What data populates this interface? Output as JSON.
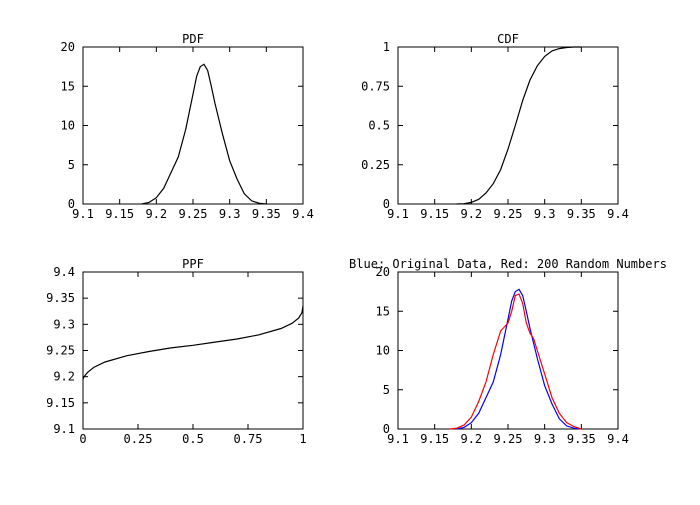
{
  "chart_data": [
    {
      "type": "line",
      "title": "PDF",
      "xlabel": "",
      "ylabel": "",
      "xlim": [
        9.1,
        9.4
      ],
      "ylim": [
        0,
        20
      ],
      "x_ticks": [
        "9.1",
        "9.15",
        "9.2",
        "9.25",
        "9.3",
        "9.35",
        "9.4"
      ],
      "y_ticks": [
        "0",
        "5",
        "10",
        "15",
        "20"
      ],
      "series": [
        {
          "color": "#000000",
          "x": [
            9.18,
            9.19,
            9.2,
            9.21,
            9.22,
            9.23,
            9.24,
            9.25,
            9.255,
            9.26,
            9.265,
            9.27,
            9.275,
            9.28,
            9.29,
            9.3,
            9.31,
            9.32,
            9.33,
            9.34,
            9.35
          ],
          "y": [
            0,
            0.2,
            0.8,
            2,
            4,
            6,
            9.5,
            14,
            16.3,
            17.5,
            17.8,
            17,
            15,
            12.8,
            9,
            5.5,
            3.2,
            1.3,
            0.4,
            0.1,
            0
          ]
        }
      ]
    },
    {
      "type": "line",
      "title": "CDF",
      "xlabel": "",
      "ylabel": "",
      "xlim": [
        9.1,
        9.4
      ],
      "ylim": [
        0,
        1
      ],
      "x_ticks": [
        "9.1",
        "9.15",
        "9.2",
        "9.25",
        "9.3",
        "9.35",
        "9.4"
      ],
      "y_ticks": [
        "0",
        "0.25",
        "0.5",
        "0.75",
        "1"
      ],
      "series": [
        {
          "color": "#000000",
          "x": [
            9.18,
            9.19,
            9.2,
            9.21,
            9.22,
            9.23,
            9.24,
            9.25,
            9.26,
            9.27,
            9.28,
            9.29,
            9.3,
            9.31,
            9.32,
            9.33,
            9.34,
            9.35
          ],
          "y": [
            0,
            0.002,
            0.01,
            0.03,
            0.07,
            0.13,
            0.22,
            0.35,
            0.5,
            0.66,
            0.79,
            0.88,
            0.94,
            0.975,
            0.99,
            0.997,
            1,
            1
          ]
        }
      ]
    },
    {
      "type": "line",
      "title": "PPF",
      "xlabel": "",
      "ylabel": "",
      "xlim": [
        0,
        1
      ],
      "ylim": [
        9.1,
        9.4
      ],
      "x_ticks": [
        "0",
        "0.25",
        "0.5",
        "0.75",
        "1"
      ],
      "y_ticks": [
        "9.1",
        "9.15",
        "9.2",
        "9.25",
        "9.3",
        "9.35",
        "9.4"
      ],
      "series": [
        {
          "color": "#000000",
          "x": [
            0,
            0.005,
            0.02,
            0.05,
            0.1,
            0.2,
            0.3,
            0.4,
            0.5,
            0.6,
            0.7,
            0.8,
            0.9,
            0.95,
            0.98,
            0.995,
            1
          ],
          "y": [
            9.195,
            9.2,
            9.208,
            9.218,
            9.228,
            9.24,
            9.248,
            9.255,
            9.26,
            9.266,
            9.272,
            9.28,
            9.292,
            9.302,
            9.312,
            9.322,
            9.335
          ]
        }
      ]
    },
    {
      "type": "line",
      "title": "Blue: Original Data, Red: 200 Random Numbers",
      "xlabel": "",
      "ylabel": "",
      "xlim": [
        9.1,
        9.4
      ],
      "ylim": [
        0,
        20
      ],
      "x_ticks": [
        "9.1",
        "9.15",
        "9.2",
        "9.25",
        "9.3",
        "9.35",
        "9.4"
      ],
      "y_ticks": [
        "0",
        "5",
        "10",
        "15",
        "20"
      ],
      "series": [
        {
          "color": "#0000ff",
          "x": [
            9.18,
            9.19,
            9.2,
            9.21,
            9.22,
            9.23,
            9.24,
            9.25,
            9.255,
            9.26,
            9.265,
            9.27,
            9.275,
            9.28,
            9.29,
            9.3,
            9.31,
            9.32,
            9.33,
            9.34,
            9.35
          ],
          "y": [
            0,
            0.2,
            0.8,
            2,
            4,
            6,
            9.5,
            14,
            16.3,
            17.5,
            17.8,
            17,
            15,
            12.8,
            9,
            5.5,
            3.2,
            1.3,
            0.4,
            0.1,
            0
          ]
        },
        {
          "color": "#ff0000",
          "x": [
            9.17,
            9.18,
            9.19,
            9.2,
            9.21,
            9.22,
            9.23,
            9.24,
            9.25,
            9.255,
            9.26,
            9.265,
            9.27,
            9.275,
            9.28,
            9.285,
            9.29,
            9.3,
            9.31,
            9.32,
            9.33,
            9.34,
            9.35
          ],
          "y": [
            0,
            0.1,
            0.5,
            1.5,
            3.5,
            6,
            9.5,
            12.5,
            13.5,
            15,
            17,
            17.2,
            16,
            13.5,
            12.2,
            11.5,
            10,
            7,
            4,
            2,
            0.8,
            0.3,
            0
          ]
        }
      ]
    }
  ]
}
